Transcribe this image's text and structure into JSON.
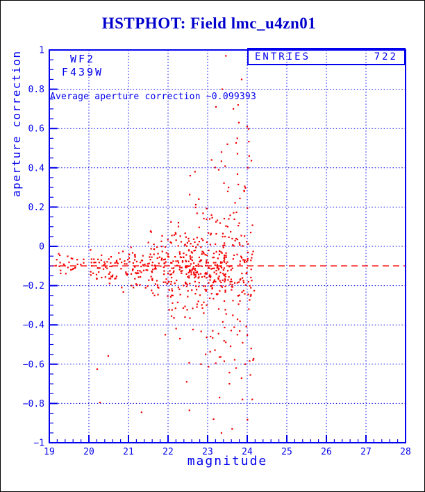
{
  "title": "HSTPHOT: Field lmc_u4zn01",
  "colors": {
    "axis_blue": "#0000ee",
    "title_blue": "#0000cc",
    "data_red": "#f40000",
    "mean_line_red": "#ff0000",
    "frame_black": "#000000",
    "background": "#ffffff"
  },
  "labels": {
    "detector": "WF2",
    "filter": "F439W",
    "annotation": "Average aperture correction −0.099393",
    "entries_title": "ENTRIES",
    "entries_value": "722",
    "xlabel": "magnitude",
    "ylabel": "aperture correction"
  },
  "chart_data": {
    "type": "scatter",
    "title": "HSTPHOT: Field lmc_u4zn01",
    "xlabel": "magnitude",
    "ylabel": "aperture correction",
    "xlim": [
      19,
      28
    ],
    "ylim": [
      -1,
      1
    ],
    "x_major_ticks": [
      19,
      20,
      21,
      22,
      23,
      24,
      25,
      26,
      27,
      28
    ],
    "x_tick_labels": [
      "19",
      "20",
      "21",
      "22",
      "23",
      "24",
      "25",
      "26",
      "27",
      "28"
    ],
    "y_major_ticks": [
      -1,
      -0.8,
      -0.6,
      -0.4,
      -0.2,
      0,
      0.2,
      0.4,
      0.6,
      0.8,
      1
    ],
    "y_tick_labels": [
      "−1",
      "−0.8",
      "−0.6",
      "−0.4",
      "−0.2",
      "0",
      "0.2",
      "0.4",
      "0.6",
      "0.8",
      "1"
    ],
    "x_minor_step": 0.2,
    "y_minor_step": 0.05,
    "grid_on_major": true,
    "grid_style": "dotted",
    "legend_position": "none",
    "entries": 722,
    "detector": "WF2",
    "filter": "F439W",
    "mean_line_y": -0.099393,
    "mean_line_style": "dashed",
    "stat_box": {
      "label": "ENTRIES",
      "value": "722"
    },
    "x_data_range": [
      19.15,
      24.18
    ],
    "seed": 11,
    "point_bands": [
      {
        "x0": 19.15,
        "x1": 20.0,
        "n": 26,
        "mu": -0.095,
        "sigma": 0.032
      },
      {
        "x0": 20.0,
        "x1": 20.5,
        "n": 30,
        "mu": -0.098,
        "sigma": 0.04
      },
      {
        "x0": 20.5,
        "x1": 21.0,
        "n": 36,
        "mu": -0.1,
        "sigma": 0.048
      },
      {
        "x0": 21.0,
        "x1": 21.5,
        "n": 46,
        "mu": -0.1,
        "sigma": 0.058
      },
      {
        "x0": 21.5,
        "x1": 22.0,
        "n": 66,
        "mu": -0.103,
        "sigma": 0.075
      },
      {
        "x0": 22.0,
        "x1": 22.5,
        "n": 96,
        "mu": -0.105,
        "sigma": 0.14,
        "core_frac": 0.5,
        "core_sigma": 0.065
      },
      {
        "x0": 22.5,
        "x1": 23.0,
        "n": 124,
        "mu": -0.11,
        "sigma": 0.185,
        "core_frac": 0.5,
        "core_sigma": 0.07
      },
      {
        "x0": 23.0,
        "x1": 23.5,
        "n": 132,
        "mu": -0.115,
        "sigma": 0.245,
        "core_frac": 0.45,
        "core_sigma": 0.075
      },
      {
        "x0": 23.5,
        "x1": 24.18,
        "n": 128,
        "mu": -0.13,
        "sigma": 0.3,
        "core_frac": 0.4,
        "core_sigma": 0.08
      }
    ],
    "outlier_points": [
      [
        23.46,
        0.97
      ],
      [
        23.86,
        0.85
      ],
      [
        23.37,
        0.8
      ],
      [
        23.77,
        0.72
      ],
      [
        23.21,
        0.71
      ],
      [
        23.65,
        0.7
      ],
      [
        23.79,
        0.63
      ],
      [
        24.0,
        0.61
      ],
      [
        23.75,
        0.55
      ],
      [
        23.5,
        0.52
      ],
      [
        23.35,
        0.48
      ],
      [
        24.05,
        0.46
      ],
      [
        23.1,
        0.44
      ],
      [
        24.02,
        0.4
      ],
      [
        23.28,
        0.39
      ],
      [
        22.68,
        0.38
      ],
      [
        22.56,
        0.36
      ],
      [
        20.21,
        -0.625
      ],
      [
        20.49,
        -0.558
      ],
      [
        20.28,
        -0.795
      ],
      [
        21.33,
        -0.845
      ],
      [
        21.93,
        -0.45
      ],
      [
        22.54,
        -0.835
      ],
      [
        22.47,
        -0.69
      ],
      [
        23.35,
        -0.95
      ],
      [
        23.62,
        -0.93
      ],
      [
        23.15,
        -0.88
      ],
      [
        23.88,
        -0.78
      ],
      [
        23.3,
        -0.77
      ],
      [
        23.55,
        -0.7
      ],
      [
        23.95,
        -0.6
      ],
      [
        24.08,
        -0.655
      ],
      [
        23.72,
        -0.62
      ],
      [
        24.1,
        -0.52
      ],
      [
        23.42,
        -0.585
      ],
      [
        22.83,
        -0.6
      ],
      [
        22.95,
        -0.55
      ],
      [
        22.3,
        -0.47
      ]
    ]
  }
}
